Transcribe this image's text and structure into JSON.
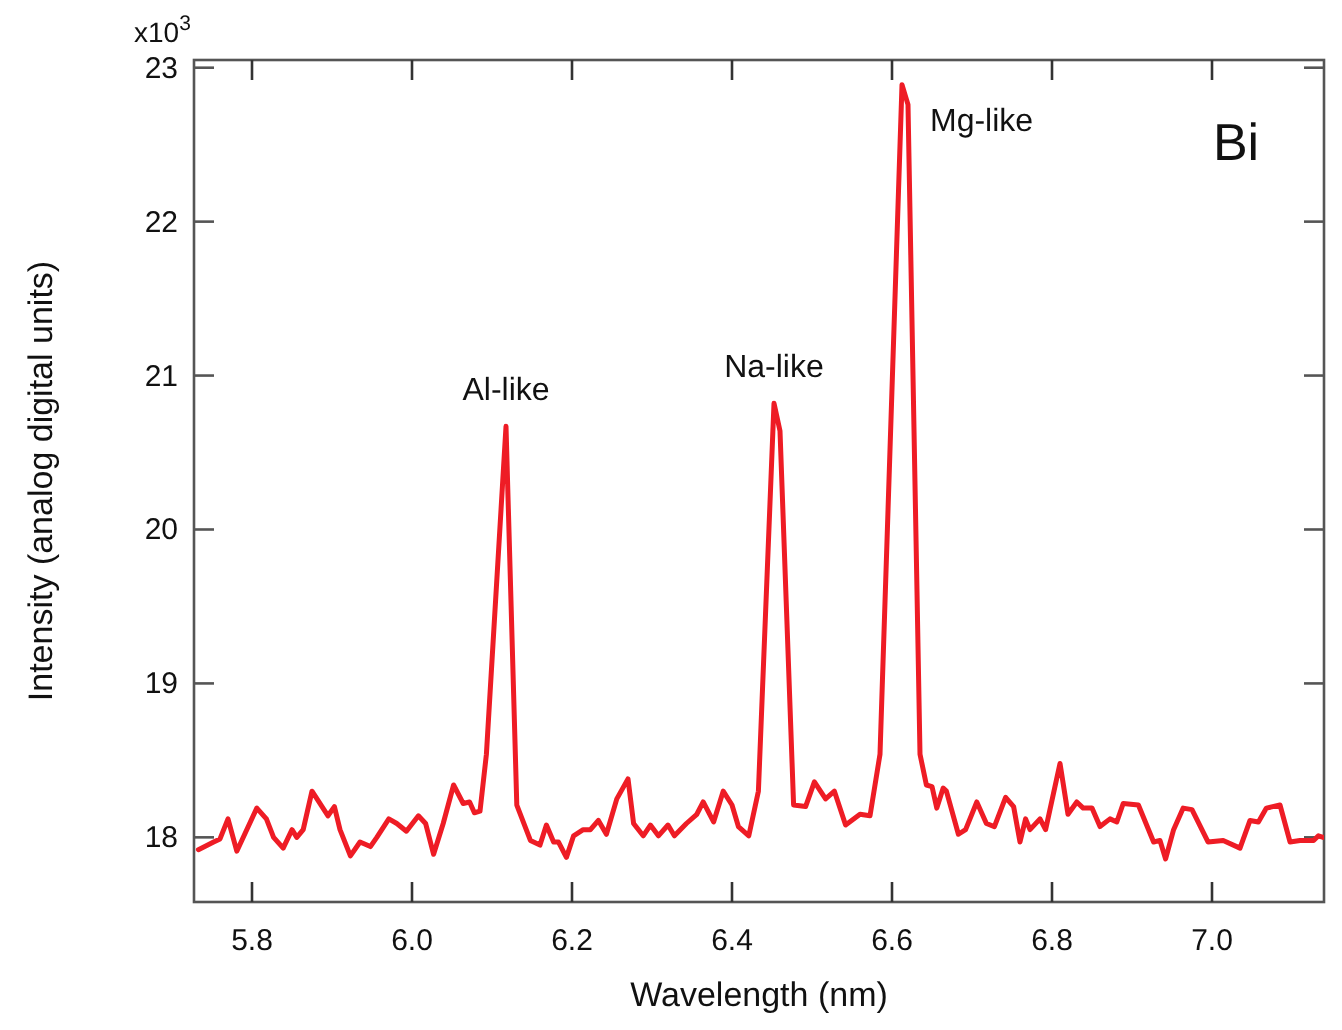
{
  "chart_data": {
    "type": "line",
    "xlabel": "Wavelength (nm)",
    "ylabel": "Intensity (analog digital units)",
    "xlim": [
      5.7275,
      7.14
    ],
    "ylim": [
      17.58,
      23.05
    ],
    "xticks": [
      {
        "value": 5.8,
        "label": "5.8"
      },
      {
        "value": 6.0,
        "label": "6.0"
      },
      {
        "value": 6.2,
        "label": "6.2"
      },
      {
        "value": 6.4,
        "label": "6.4"
      },
      {
        "value": 6.6,
        "label": "6.6"
      },
      {
        "value": 6.8,
        "label": "6.8"
      },
      {
        "value": 7.0,
        "label": "7.0"
      }
    ],
    "yticks": [
      18,
      19,
      20,
      21,
      22,
      23
    ],
    "title": "Bi",
    "grid": false,
    "line_style": "solid",
    "marker": "none",
    "annotations": [
      {
        "text": "Al-like",
        "x": 6.1175,
        "y": 20.67
      },
      {
        "text": "Na-like",
        "x": 6.4525,
        "y": 20.82
      },
      {
        "text": "Mg-like",
        "x": 6.6125,
        "y": 22.89
      },
      "x10$^{3}$"
    ],
    "series": [
      {
        "color": "#ee1c25",
        "x": [
          5.733,
          5.752,
          5.76,
          5.77,
          5.781,
          5.806,
          5.818,
          5.827,
          5.839,
          5.85,
          5.856,
          5.864,
          5.875,
          5.895,
          5.903,
          5.91,
          5.923,
          5.935,
          5.948,
          5.956,
          5.971,
          5.981,
          5.993,
          6.008,
          6.017,
          6.027,
          6.039,
          6.052,
          6.064,
          6.072,
          6.078,
          6.085,
          6.093,
          6.1175,
          6.131,
          6.148,
          6.16,
          6.168,
          6.177,
          6.183,
          6.193,
          6.202,
          6.214,
          6.223,
          6.233,
          6.243,
          6.256,
          6.27,
          6.277,
          6.289,
          6.298,
          6.308,
          6.32,
          6.328,
          6.343,
          6.356,
          6.364,
          6.377,
          6.389,
          6.4,
          6.408,
          6.421,
          6.433,
          6.4525,
          6.46,
          6.477,
          6.492,
          6.503,
          6.517,
          6.528,
          6.542,
          6.56,
          6.5725,
          6.585,
          6.6125,
          6.62,
          6.635,
          6.643,
          6.65,
          6.656,
          6.664,
          6.668,
          6.683,
          6.692,
          6.706,
          6.718,
          6.728,
          6.742,
          6.752,
          6.76,
          6.767,
          6.7725,
          6.785,
          6.792,
          6.81,
          6.82,
          6.831,
          6.839,
          6.85,
          6.86,
          6.8725,
          6.881,
          6.889,
          6.908,
          6.927,
          6.935,
          6.942,
          6.952,
          6.964,
          6.975,
          6.995,
          7.014,
          7.035,
          7.0475,
          7.058,
          7.068,
          7.085,
          7.0975,
          7.11,
          7.127,
          7.133,
          7.139
        ],
        "values": [
          17.92,
          17.97,
          17.99,
          18.12,
          17.91,
          18.19,
          18.12,
          18.0,
          17.93,
          18.05,
          18.0,
          18.05,
          18.3,
          18.14,
          18.2,
          18.05,
          17.88,
          17.97,
          17.94,
          18.0,
          18.12,
          18.09,
          18.04,
          18.14,
          18.09,
          17.89,
          18.09,
          18.34,
          18.22,
          18.23,
          18.16,
          18.17,
          18.54,
          20.67,
          18.21,
          17.98,
          17.95,
          18.08,
          17.97,
          17.97,
          17.87,
          18.01,
          18.05,
          18.05,
          18.11,
          18.02,
          18.25,
          18.38,
          18.09,
          18.01,
          18.08,
          18.01,
          18.08,
          18.01,
          18.09,
          18.15,
          18.23,
          18.1,
          18.3,
          18.21,
          18.07,
          18.01,
          18.3,
          20.82,
          20.64,
          18.21,
          18.2,
          18.36,
          18.25,
          18.3,
          18.08,
          18.15,
          18.14,
          18.54,
          22.89,
          22.76,
          18.54,
          18.34,
          18.33,
          18.19,
          18.32,
          18.3,
          18.02,
          18.05,
          18.23,
          18.09,
          18.07,
          18.26,
          18.2,
          17.97,
          18.12,
          18.05,
          18.12,
          18.05,
          18.48,
          18.15,
          18.23,
          18.19,
          18.19,
          18.07,
          18.12,
          18.1,
          18.22,
          18.21,
          17.97,
          17.98,
          17.86,
          18.05,
          18.19,
          18.18,
          17.97,
          17.98,
          17.93,
          18.11,
          18.1,
          18.19,
          18.21,
          17.97,
          17.98,
          17.98,
          18.01,
          18.0
        ]
      }
    ]
  }
}
